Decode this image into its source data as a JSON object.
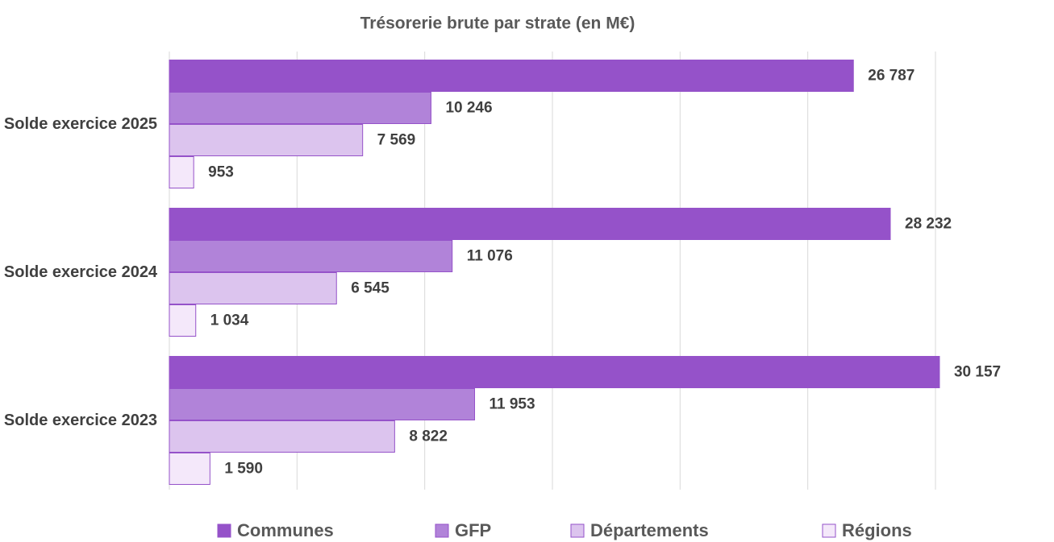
{
  "chart_data": {
    "type": "hbar",
    "title": "Trésorerie brute par strate (en M€)",
    "categories": [
      "Solde exercice 2025",
      "Solde exercice 2024",
      "Solde exercice 2023"
    ],
    "series": [
      {
        "name": "Communes",
        "color": "#9552c9",
        "values": [
          26787,
          28232,
          30157
        ],
        "value_labels": [
          "26 787",
          "28 232",
          "30 157"
        ]
      },
      {
        "name": "GFP",
        "color": "#b183d9",
        "values": [
          10246,
          11076,
          11953
        ],
        "value_labels": [
          "10 246",
          "11 076",
          "11 953"
        ]
      },
      {
        "name": "Départements",
        "color": "#dcc4ee",
        "values": [
          7569,
          6545,
          8822
        ],
        "value_labels": [
          "7 569",
          "6 545",
          "8 822"
        ]
      },
      {
        "name": "Régions",
        "color": "#f4e8fa",
        "values": [
          953,
          1034,
          1590
        ],
        "value_labels": [
          "953",
          "1 034",
          "1 590"
        ]
      }
    ],
    "xlim": [
      0,
      30000
    ],
    "xticks": [
      0,
      5000,
      10000,
      15000,
      20000,
      25000,
      30000
    ],
    "grid": true,
    "legend": "bottom"
  }
}
